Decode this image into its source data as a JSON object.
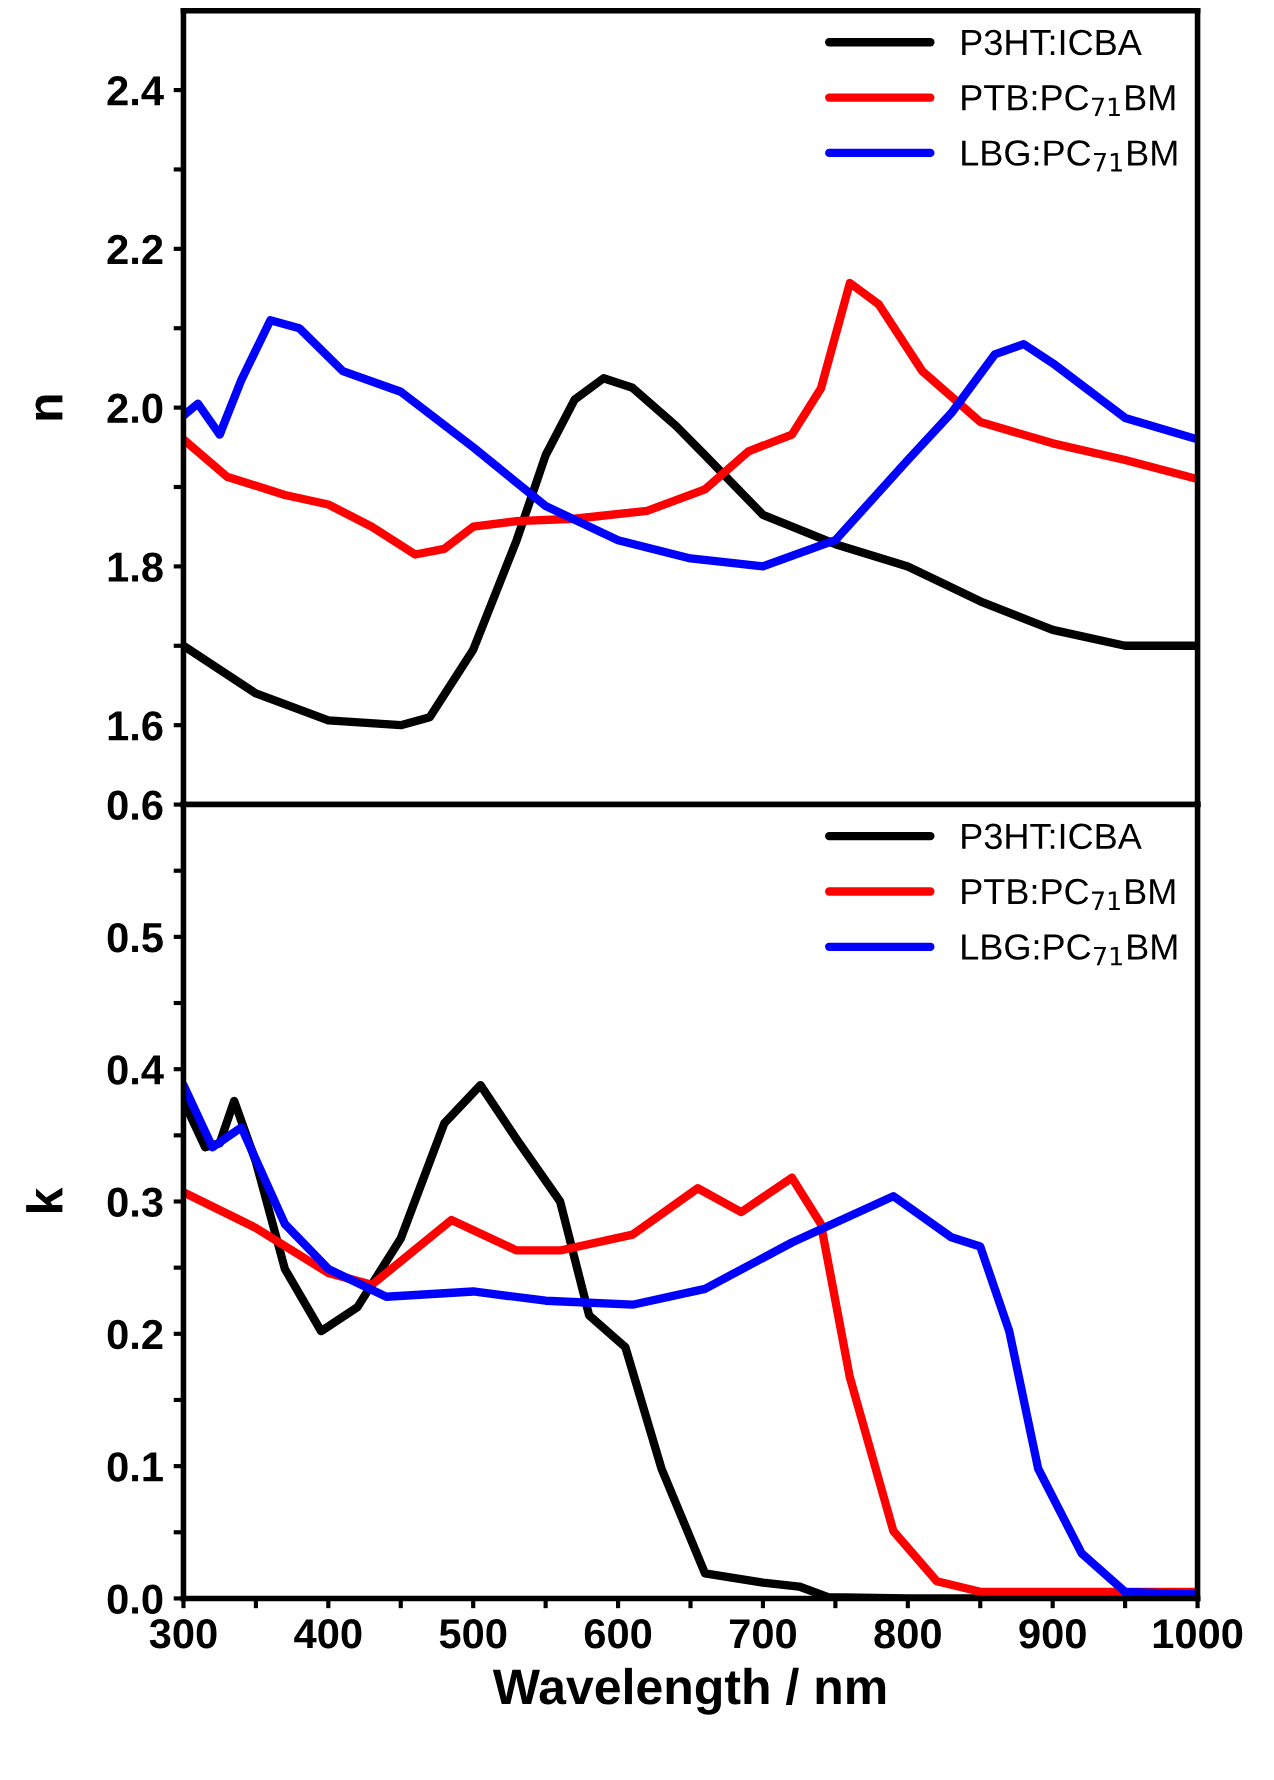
{
  "chart_data": [
    {
      "type": "line",
      "ylabel": "n",
      "legend": "top right",
      "tick_labels": "y",
      "line_style": "solid",
      "marker": "none",
      "grid": false,
      "xlim": [
        300,
        1000
      ],
      "xticks": [
        {
          "value": 300,
          "label": null
        },
        {
          "value": 350,
          "label": null
        },
        {
          "value": 400,
          "label": null
        },
        {
          "value": 450,
          "label": null
        },
        {
          "value": 500,
          "label": null
        },
        {
          "value": 550,
          "label": null
        },
        {
          "value": 600,
          "label": null
        },
        {
          "value": 650,
          "label": null
        },
        {
          "value": 700,
          "label": null
        },
        {
          "value": 750,
          "label": null
        },
        {
          "value": 800,
          "label": null
        },
        {
          "value": 850,
          "label": null
        },
        {
          "value": 900,
          "label": null
        },
        {
          "value": 950,
          "label": null
        },
        {
          "value": 1000,
          "label": null
        }
      ],
      "ylim": [
        1.5,
        2.5
      ],
      "yticks": [
        1.6,
        {
          "value": 1.7,
          "label": null
        },
        1.8,
        {
          "value": 1.9,
          "label": null
        },
        {
          "value": 2.0,
          "label": "2.0"
        },
        {
          "value": 2.1,
          "label": null
        },
        2.2,
        {
          "value": 2.3,
          "label": null
        },
        2.4
      ],
      "series": [
        {
          "name": "P3HT:ICBA",
          "color": "#000000",
          "x": [
            300,
            350,
            400,
            450,
            470,
            500,
            530,
            550,
            570,
            590,
            610,
            640,
            660,
            700,
            750,
            800,
            850,
            900,
            950,
            1000
          ],
          "values": [
            1.7,
            1.64,
            1.606,
            1.6,
            1.61,
            1.695,
            1.833,
            1.94,
            2.01,
            2.037,
            2.025,
            1.977,
            1.94,
            1.865,
            1.828,
            1.8,
            1.756,
            1.72,
            1.7,
            1.7
          ]
        },
        {
          "name": "PTB:PC$_{71}$BM",
          "color": "#ff0000",
          "x": [
            300,
            330,
            370,
            400,
            430,
            460,
            480,
            500,
            530,
            570,
            620,
            660,
            690,
            720,
            740,
            760,
            780,
            810,
            850,
            900,
            950,
            1000
          ],
          "values": [
            1.96,
            1.913,
            1.89,
            1.878,
            1.85,
            1.815,
            1.822,
            1.85,
            1.857,
            1.86,
            1.87,
            1.897,
            1.945,
            1.966,
            2.024,
            2.157,
            2.13,
            2.046,
            1.982,
            1.955,
            1.934,
            1.91
          ]
        },
        {
          "name": "LBG:PC$_{71}$BM",
          "color": "#0000ff",
          "x": [
            300,
            310,
            325,
            340,
            360,
            380,
            410,
            450,
            500,
            550,
            600,
            650,
            700,
            750,
            800,
            830,
            860,
            880,
            900,
            950,
            1000
          ],
          "values": [
            1.99,
            2.005,
            1.966,
            2.035,
            2.11,
            2.1,
            2.046,
            2.02,
            1.95,
            1.876,
            1.833,
            1.81,
            1.8,
            1.833,
            1.934,
            1.993,
            2.067,
            2.08,
            2.056,
            1.987,
            1.96
          ]
        }
      ]
    },
    {
      "type": "line",
      "xlabel": "Wavelength / nm",
      "ylabel": "k",
      "legend": "top right",
      "line_style": "solid",
      "marker": "none",
      "grid": false,
      "xlim": [
        300,
        1000
      ],
      "xticks": [
        300,
        {
          "value": 350,
          "label": null
        },
        400,
        {
          "value": 450,
          "label": null
        },
        500,
        {
          "value": 550,
          "label": null
        },
        600,
        {
          "value": 650,
          "label": null
        },
        700,
        {
          "value": 750,
          "label": null
        },
        800,
        {
          "value": 850,
          "label": null
        },
        900,
        {
          "value": 950,
          "label": null
        },
        1000
      ],
      "ylim": [
        0.0,
        0.6
      ],
      "yticks": [
        {
          "value": 0.0,
          "label": "0.0"
        },
        {
          "value": 0.05,
          "label": null
        },
        0.1,
        {
          "value": 0.15,
          "label": null
        },
        0.2,
        {
          "value": 0.25,
          "label": null
        },
        0.3,
        {
          "value": 0.35,
          "label": null
        },
        0.4,
        {
          "value": 0.45,
          "label": null
        },
        0.5,
        {
          "value": 0.55,
          "label": null
        },
        0.6
      ],
      "series": [
        {
          "name": "P3HT:ICBA",
          "color": "#000000",
          "x": [
            300,
            315,
            325,
            335,
            350,
            370,
            395,
            420,
            450,
            480,
            505,
            530,
            560,
            580,
            605,
            630,
            660,
            700,
            725,
            745,
            800,
            1000
          ],
          "values": [
            0.376,
            0.341,
            0.344,
            0.376,
            0.33,
            0.249,
            0.202,
            0.22,
            0.272,
            0.359,
            0.388,
            0.347,
            0.3,
            0.214,
            0.19,
            0.098,
            0.019,
            0.012,
            0.009,
            0.001,
            0.0,
            0.0
          ]
        },
        {
          "name": "PTB:PC$_{71}$BM",
          "color": "#ff0000",
          "x": [
            300,
            350,
            400,
            430,
            485,
            530,
            560,
            610,
            655,
            685,
            720,
            740,
            760,
            790,
            820,
            850,
            1000
          ],
          "values": [
            0.307,
            0.28,
            0.246,
            0.237,
            0.286,
            0.263,
            0.263,
            0.275,
            0.31,
            0.292,
            0.318,
            0.283,
            0.167,
            0.051,
            0.013,
            0.005,
            0.005
          ]
        },
        {
          "name": "LBG:PC$_{71}$BM",
          "color": "#0000ff",
          "x": [
            300,
            320,
            340,
            370,
            400,
            440,
            500,
            550,
            610,
            660,
            720,
            790,
            830,
            850,
            870,
            890,
            920,
            950,
            1000
          ],
          "values": [
            0.388,
            0.341,
            0.356,
            0.283,
            0.249,
            0.228,
            0.232,
            0.225,
            0.222,
            0.234,
            0.269,
            0.304,
            0.273,
            0.266,
            0.202,
            0.098,
            0.034,
            0.005,
            0.003
          ]
        }
      ]
    }
  ]
}
